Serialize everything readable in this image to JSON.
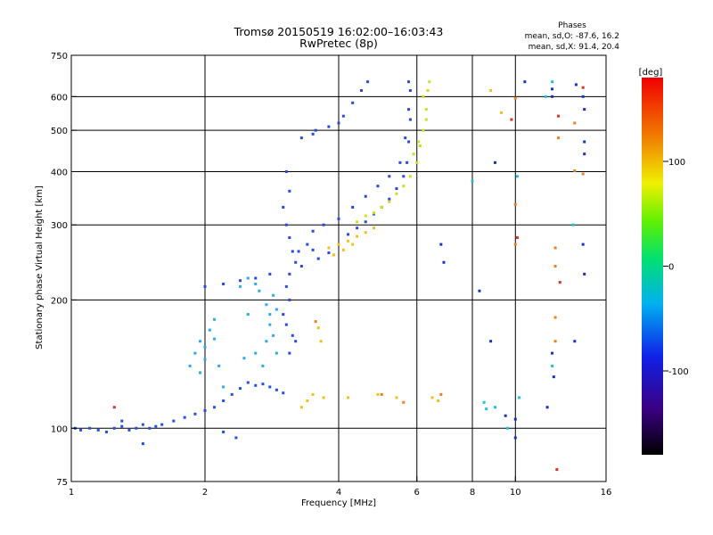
{
  "chart_data": {
    "type": "scatter",
    "title": "Tromsø 20150519 16:02:00–16:03:43",
    "subtitle": "RwPretec (8p)",
    "xlabel": "Frequency [MHz]",
    "ylabel": "Stationary phase Virtual Height [km]",
    "x_scale": "log",
    "y_scale": "log",
    "xlim": [
      1,
      16
    ],
    "ylim": [
      75,
      750
    ],
    "x_ticks": [
      1,
      2,
      4,
      6,
      8,
      10,
      16
    ],
    "y_ticks": [
      75,
      100,
      200,
      300,
      400,
      500,
      600,
      750
    ],
    "x_gridlines": [
      2,
      4,
      6,
      8,
      10
    ],
    "y_gridlines": [
      100,
      200,
      300,
      400,
      500,
      600
    ],
    "grid": true,
    "stats_header": "Phases",
    "stats_lines": [
      "mean, sd,O: -87.6, 16.2",
      "mean, sd,X:  91.4, 20.4"
    ],
    "colorbar": {
      "label": "[deg]",
      "range": [
        -180,
        180
      ],
      "ticks": [
        100,
        0,
        -100
      ],
      "tick_labels": [
        "100",
        "0",
        "-100"
      ],
      "placement": "right"
    },
    "series": [
      {
        "color": "#2050e8",
        "points": [
          [
            1.02,
            100
          ],
          [
            1.05,
            99
          ],
          [
            1.1,
            100
          ],
          [
            1.15,
            99
          ],
          [
            1.2,
            98
          ],
          [
            1.25,
            100
          ],
          [
            1.3,
            101
          ],
          [
            1.35,
            99
          ],
          [
            1.4,
            100
          ],
          [
            1.45,
            102
          ],
          [
            1.5,
            100
          ],
          [
            1.55,
            101
          ],
          [
            1.6,
            102
          ],
          [
            1.7,
            104
          ],
          [
            1.8,
            106
          ],
          [
            1.9,
            108
          ],
          [
            2.0,
            110
          ],
          [
            2.1,
            112
          ],
          [
            2.2,
            116
          ],
          [
            2.3,
            120
          ],
          [
            2.4,
            124
          ],
          [
            2.5,
            128
          ],
          [
            2.6,
            126
          ],
          [
            2.7,
            127
          ],
          [
            2.8,
            125
          ],
          [
            2.9,
            123
          ],
          [
            3.0,
            121
          ],
          [
            2.2,
            98
          ],
          [
            2.35,
            95
          ],
          [
            1.3,
            104
          ],
          [
            1.45,
            92
          ]
        ]
      },
      {
        "color": "#30a8f0",
        "points": [
          [
            1.85,
            140
          ],
          [
            1.9,
            150
          ],
          [
            1.95,
            160
          ],
          [
            2.0,
            155
          ],
          [
            2.05,
            170
          ],
          [
            2.1,
            162
          ],
          [
            2.0,
            145
          ],
          [
            1.95,
            135
          ],
          [
            2.1,
            180
          ],
          [
            2.15,
            140
          ],
          [
            2.2,
            125
          ],
          [
            2.45,
            146
          ],
          [
            2.5,
            185
          ],
          [
            2.6,
            150
          ],
          [
            2.7,
            140
          ],
          [
            2.75,
            160
          ],
          [
            2.8,
            175
          ],
          [
            2.85,
            165
          ],
          [
            2.9,
            150
          ],
          [
            2.8,
            185
          ],
          [
            2.75,
            195
          ],
          [
            2.4,
            215
          ],
          [
            2.5,
            225
          ],
          [
            2.6,
            218
          ],
          [
            2.65,
            210
          ],
          [
            2.85,
            205
          ],
          [
            2.9,
            190
          ]
        ]
      },
      {
        "color": "#2848e0",
        "points": [
          [
            2.0,
            215
          ],
          [
            2.2,
            218
          ],
          [
            2.4,
            222
          ],
          [
            2.6,
            225
          ],
          [
            2.8,
            230
          ],
          [
            3.05,
            400
          ],
          [
            3.1,
            360
          ],
          [
            3.0,
            330
          ],
          [
            3.05,
            300
          ],
          [
            3.1,
            280
          ],
          [
            3.15,
            260
          ],
          [
            3.2,
            245
          ],
          [
            3.1,
            230
          ],
          [
            3.05,
            215
          ],
          [
            3.1,
            200
          ],
          [
            3.0,
            185
          ],
          [
            3.05,
            175
          ],
          [
            3.15,
            165
          ],
          [
            3.2,
            160
          ],
          [
            3.1,
            150
          ],
          [
            3.25,
            260
          ],
          [
            3.4,
            270
          ],
          [
            3.5,
            262
          ],
          [
            3.3,
            240
          ],
          [
            3.6,
            250
          ],
          [
            3.8,
            258
          ],
          [
            4.0,
            270
          ],
          [
            4.2,
            285
          ],
          [
            4.4,
            295
          ],
          [
            4.6,
            305
          ],
          [
            4.8,
            318
          ],
          [
            5.0,
            330
          ],
          [
            5.2,
            345
          ],
          [
            5.4,
            365
          ],
          [
            5.6,
            390
          ],
          [
            5.7,
            420
          ],
          [
            5.75,
            470
          ],
          [
            5.8,
            530
          ],
          [
            5.8,
            620
          ],
          [
            5.75,
            650
          ],
          [
            3.5,
            290
          ],
          [
            3.7,
            300
          ],
          [
            4.0,
            310
          ],
          [
            4.3,
            330
          ],
          [
            4.6,
            350
          ],
          [
            4.9,
            370
          ],
          [
            5.2,
            390
          ],
          [
            5.5,
            420
          ],
          [
            5.65,
            480
          ],
          [
            5.75,
            560
          ],
          [
            3.3,
            480
          ],
          [
            3.5,
            490
          ],
          [
            3.8,
            510
          ],
          [
            4.1,
            540
          ],
          [
            4.3,
            580
          ],
          [
            4.5,
            620
          ],
          [
            4.65,
            650
          ],
          [
            3.55,
            500
          ],
          [
            4.0,
            520
          ]
        ]
      },
      {
        "color": "#c8e020",
        "points": [
          [
            4.4,
            305
          ],
          [
            4.6,
            315
          ],
          [
            4.8,
            320
          ],
          [
            5.0,
            330
          ],
          [
            5.2,
            340
          ],
          [
            5.4,
            355
          ],
          [
            5.6,
            370
          ],
          [
            5.8,
            390
          ],
          [
            6.0,
            420
          ],
          [
            6.1,
            460
          ],
          [
            6.2,
            500
          ],
          [
            6.3,
            560
          ],
          [
            6.35,
            620
          ],
          [
            6.4,
            650
          ],
          [
            6.2,
            600
          ],
          [
            6.3,
            530
          ],
          [
            6.05,
            470
          ],
          [
            5.9,
            440
          ]
        ]
      },
      {
        "color": "#f0c020",
        "points": [
          [
            3.8,
            265
          ],
          [
            4.0,
            270
          ],
          [
            4.2,
            275
          ],
          [
            4.4,
            282
          ],
          [
            4.6,
            288
          ],
          [
            4.8,
            295
          ],
          [
            3.9,
            255
          ],
          [
            4.1,
            262
          ],
          [
            4.3,
            270
          ],
          [
            3.3,
            112
          ],
          [
            3.4,
            116
          ],
          [
            3.5,
            120
          ],
          [
            3.7,
            118
          ],
          [
            3.6,
            172
          ],
          [
            3.65,
            160
          ],
          [
            4.2,
            118
          ],
          [
            4.9,
            120
          ],
          [
            5.4,
            118
          ],
          [
            6.5,
            118
          ],
          [
            6.7,
            116
          ],
          [
            8.8,
            620
          ],
          [
            9.3,
            550
          ]
        ]
      },
      {
        "color": "#f08020",
        "points": [
          [
            5.0,
            120
          ],
          [
            5.6,
            115
          ],
          [
            6.8,
            120
          ],
          [
            3.55,
            178
          ],
          [
            10.0,
            335
          ],
          [
            10.0,
            270
          ],
          [
            12.3,
            265
          ],
          [
            12.3,
            240
          ],
          [
            12.3,
            182
          ],
          [
            12.3,
            160
          ],
          [
            10.0,
            595
          ],
          [
            12.5,
            480
          ],
          [
            13.6,
            520
          ],
          [
            14.2,
            395
          ],
          [
            13.6,
            402
          ]
        ]
      },
      {
        "color": "#e03020",
        "points": [
          [
            1.25,
            112
          ],
          [
            9.8,
            530
          ],
          [
            10.1,
            280
          ],
          [
            12.5,
            540
          ],
          [
            14.2,
            630
          ],
          [
            12.6,
            220
          ],
          [
            12.4,
            80
          ]
        ]
      },
      {
        "color": "#1830c0",
        "points": [
          [
            6.8,
            270
          ],
          [
            6.9,
            245
          ],
          [
            8.3,
            210
          ],
          [
            9.0,
            420
          ],
          [
            8.8,
            160
          ],
          [
            9.5,
            107
          ],
          [
            10.0,
            105
          ],
          [
            10.0,
            95
          ],
          [
            10.5,
            650
          ],
          [
            12.1,
            625
          ],
          [
            12.1,
            600
          ],
          [
            13.7,
            640
          ],
          [
            14.2,
            600
          ],
          [
            14.3,
            560
          ],
          [
            14.3,
            470
          ],
          [
            14.3,
            440
          ],
          [
            14.2,
            270
          ],
          [
            14.3,
            230
          ],
          [
            12.1,
            150
          ],
          [
            13.6,
            160
          ],
          [
            11.8,
            112
          ],
          [
            12.2,
            132
          ]
        ]
      },
      {
        "color": "#20c0e0",
        "points": [
          [
            8.0,
            380
          ],
          [
            8.5,
            115
          ],
          [
            10.2,
            118
          ],
          [
            12.1,
            650
          ],
          [
            12.1,
            140
          ],
          [
            10.1,
            390
          ],
          [
            11.7,
            600
          ],
          [
            13.5,
            300
          ],
          [
            9.6,
            100
          ],
          [
            8.6,
            111
          ],
          [
            9.0,
            112
          ]
        ]
      }
    ]
  }
}
